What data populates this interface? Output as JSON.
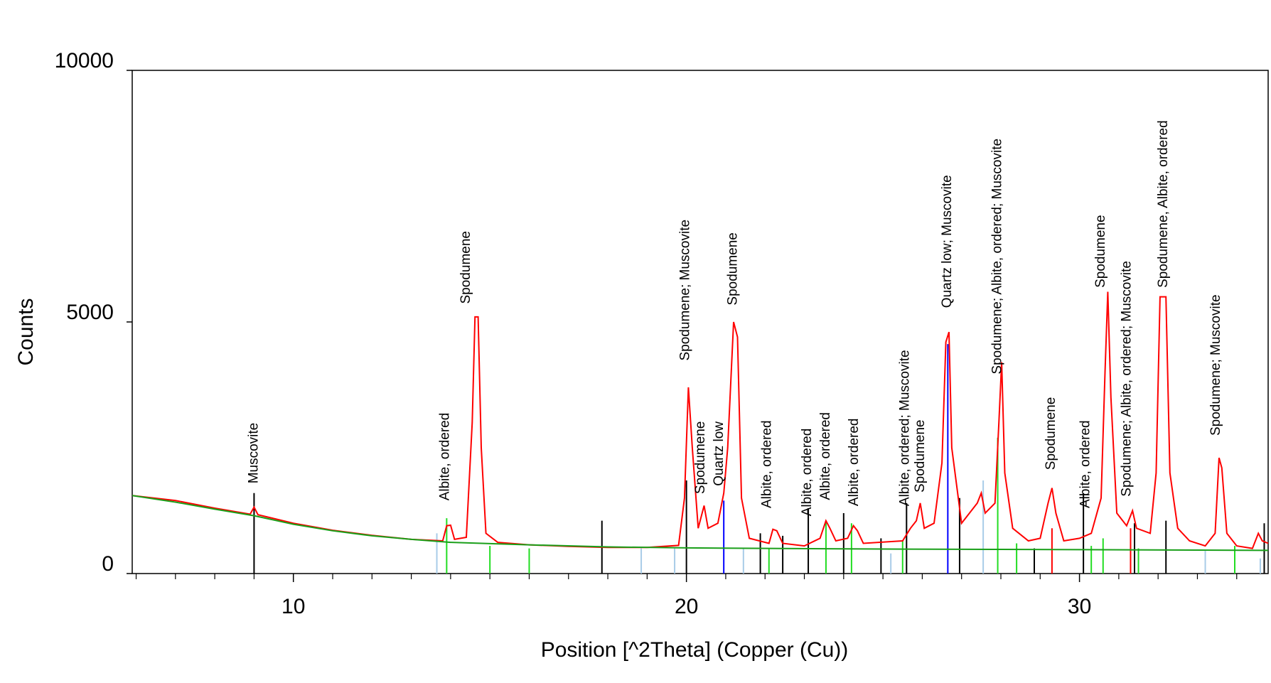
{
  "chart_data": {
    "type": "line",
    "x_label": "Position [^2Theta] (Copper (Cu))",
    "y_label": "Counts",
    "xlim": [
      5.9,
      34.8
    ],
    "ylim": [
      0,
      10000
    ],
    "xticks": [
      10,
      20,
      30
    ],
    "xminorticks": [
      6,
      7,
      8,
      9,
      11,
      12,
      13,
      14,
      15,
      16,
      17,
      18,
      19,
      21,
      22,
      23,
      24,
      25,
      26,
      27,
      28,
      29,
      31,
      32,
      33,
      34
    ],
    "yticks": [
      0,
      5000,
      10000
    ],
    "series": [
      {
        "color": "#ff0000",
        "x": [
          5.9,
          7,
          8,
          8.9,
          9.0,
          9.1,
          10,
          11,
          12,
          13,
          13.8,
          13.9,
          14.0,
          14.1,
          14.4,
          14.55,
          14.62,
          14.7,
          14.78,
          14.9,
          15.2,
          16,
          17,
          18,
          19,
          19.8,
          19.95,
          20.05,
          20.15,
          20.3,
          20.45,
          20.55,
          20.8,
          20.95,
          21.05,
          21.2,
          21.3,
          21.4,
          21.6,
          22.1,
          22.2,
          22.3,
          22.45,
          23.0,
          23.4,
          23.55,
          23.65,
          23.8,
          24.1,
          24.25,
          24.35,
          24.5,
          25.5,
          25.7,
          25.85,
          25.95,
          26.05,
          26.3,
          26.5,
          26.6,
          26.68,
          26.75,
          27.0,
          27.4,
          27.5,
          27.6,
          27.85,
          27.95,
          28.02,
          28.1,
          28.3,
          28.7,
          29.0,
          29.2,
          29.3,
          29.4,
          29.6,
          30.0,
          30.3,
          30.55,
          30.65,
          30.72,
          30.8,
          30.95,
          31.2,
          31.35,
          31.45,
          31.8,
          31.95,
          32.05,
          32.2,
          32.3,
          32.5,
          32.8,
          33.2,
          33.45,
          33.55,
          33.62,
          33.75,
          34.0,
          34.4,
          34.55,
          34.65,
          34.8
        ],
        "values": [
          1550,
          1450,
          1300,
          1180,
          1320,
          1170,
          1000,
          860,
          760,
          680,
          650,
          950,
          960,
          680,
          720,
          3000,
          5100,
          5100,
          2500,
          800,
          620,
          570,
          540,
          520,
          520,
          560,
          1500,
          3700,
          2500,
          900,
          1350,
          900,
          1000,
          1600,
          2500,
          5000,
          4700,
          1500,
          700,
          600,
          880,
          850,
          600,
          550,
          700,
          1050,
          900,
          650,
          700,
          950,
          850,
          600,
          650,
          900,
          1050,
          1400,
          900,
          1000,
          2200,
          4600,
          4800,
          2500,
          1000,
          1400,
          1600,
          1200,
          1400,
          3000,
          4200,
          2000,
          900,
          650,
          700,
          1400,
          1700,
          1200,
          650,
          700,
          800,
          1500,
          4000,
          5600,
          3500,
          1200,
          950,
          1250,
          900,
          800,
          2000,
          5500,
          5500,
          2000,
          900,
          650,
          550,
          800,
          2300,
          2100,
          800,
          550,
          500,
          800,
          650,
          600
        ]
      },
      {
        "color": "#1a9f1a",
        "x": [
          5.9,
          7,
          8,
          9,
          10,
          11,
          12,
          13,
          14,
          16,
          18,
          20,
          24,
          28,
          34.8
        ],
        "values": [
          1550,
          1420,
          1280,
          1150,
          980,
          850,
          750,
          680,
          620,
          570,
          530,
          510,
          490,
          480,
          460
        ]
      }
    ],
    "sticks": [
      {
        "color": "#000000",
        "x": [
          9.0,
          17.85,
          20.0,
          21.88,
          22.45,
          23.1,
          24.0,
          24.95,
          25.6,
          26.95,
          28.85,
          30.1,
          31.4,
          32.2,
          34.7
        ],
        "values": [
          1600,
          1050,
          1850,
          800,
          750,
          1300,
          1200,
          700,
          1400,
          1500,
          500,
          1600,
          1000,
          1050,
          1000
        ]
      },
      {
        "color": "#22dd22",
        "x": [
          13.9,
          15.0,
          16.0,
          22.1,
          23.55,
          24.2,
          25.5,
          27.92,
          28.4,
          30.3,
          30.6,
          31.5,
          33.95
        ],
        "values": [
          1100,
          550,
          500,
          500,
          1050,
          1000,
          650,
          2700,
          600,
          550,
          700,
          500,
          550
        ]
      },
      {
        "color": "#a8cce8",
        "x": [
          13.65,
          18.85,
          19.7,
          21.45,
          25.2,
          27.55,
          33.2,
          34.6
        ],
        "values": [
          800,
          500,
          500,
          500,
          400,
          1850,
          450,
          300
        ]
      },
      {
        "color": "#ff0000",
        "x": [
          29.3,
          31.3
        ],
        "values": [
          900,
          900
        ]
      },
      {
        "color": "#0000ff",
        "x": [
          20.95,
          26.65
        ],
        "values": [
          1450,
          4560
        ]
      }
    ],
    "annotations": [
      {
        "text": "Muscovite",
        "x": 9.0,
        "y": 1790
      },
      {
        "text": "Albite, ordered",
        "x": 13.87,
        "y": 1450
      },
      {
        "text": "Spodumene",
        "x": 14.4,
        "y": 5360
      },
      {
        "text": "Spodumene; Muscovite",
        "x": 19.98,
        "y": 4230
      },
      {
        "text": "Spodumene",
        "x": 20.37,
        "y": 1580
      },
      {
        "text": "Quartz low",
        "x": 20.84,
        "y": 1740
      },
      {
        "text": "Spodumene",
        "x": 21.19,
        "y": 5330
      },
      {
        "text": "Albite, ordered",
        "x": 22.06,
        "y": 1300
      },
      {
        "text": "Albite, ordered",
        "x": 23.08,
        "y": 1140
      },
      {
        "text": "Albite, ordered",
        "x": 23.55,
        "y": 1460
      },
      {
        "text": "Albite, ordered",
        "x": 24.27,
        "y": 1340
      },
      {
        "text": "Albite, ordered; Muscovite",
        "x": 25.57,
        "y": 1340
      },
      {
        "text": "Spodumene",
        "x": 25.96,
        "y": 1610
      },
      {
        "text": "Quartz low; Muscovite",
        "x": 26.64,
        "y": 5280
      },
      {
        "text": "Spodumene; Albite, ordered; Muscovite",
        "x": 27.92,
        "y": 3960
      },
      {
        "text": "Spodumene",
        "x": 29.28,
        "y": 2060
      },
      {
        "text": "Albite, ordered",
        "x": 30.16,
        "y": 1300
      },
      {
        "text": "Spodumene",
        "x": 30.55,
        "y": 5680
      },
      {
        "text": "Spodumene; Albite, ordered; Muscovite",
        "x": 31.21,
        "y": 1530
      },
      {
        "text": "Spodumene, Albite, ordered",
        "x": 32.14,
        "y": 5680
      },
      {
        "text": "Spodumene; Muscovite",
        "x": 33.48,
        "y": 2740
      }
    ]
  }
}
